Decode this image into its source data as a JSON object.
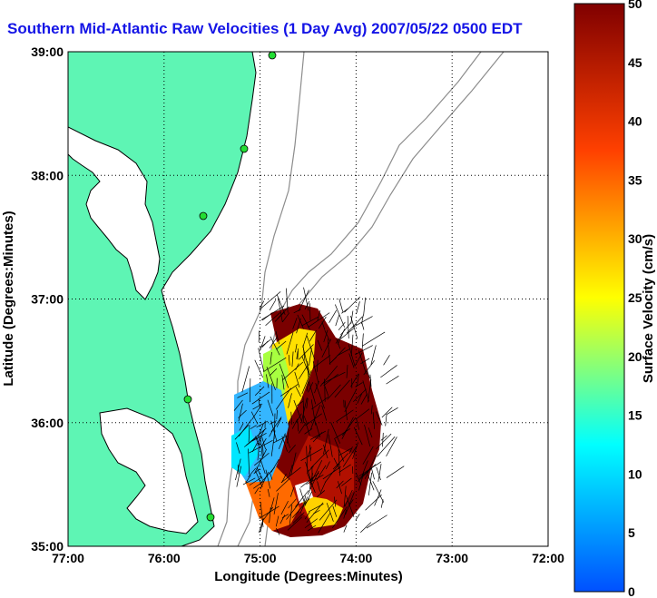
{
  "title": "Southern Mid-Atlantic Raw Velocities (1 Day Avg) 2007/05/22 0500 EDT",
  "chart_data": {
    "type": "heatmap",
    "xlabel": "Longitude (Degrees:Minutes)",
    "ylabel": "Latitude (Degrees:Minutes)",
    "xticks": [
      "77:00",
      "76:00",
      "75:00",
      "74:00",
      "73:00",
      "72:00"
    ],
    "yticks": [
      "39:00",
      "38:00",
      "37:00",
      "36:00",
      "35:00"
    ],
    "xlim": [
      -77,
      -72
    ],
    "ylim": [
      35,
      39
    ],
    "grid": true,
    "colorbar": {
      "label": "Surface Velocity (cm/s)",
      "range": [
        0,
        50
      ],
      "ticks": [
        "0",
        "5",
        "10",
        "15",
        "20",
        "25",
        "30",
        "35",
        "40",
        "45",
        "50"
      ],
      "colormap": "jet"
    },
    "colors": {
      "land": "#5ef5b4",
      "coast": "#000000",
      "bathymetry": "#8c8c8c",
      "station": "#22dd33"
    }
  }
}
